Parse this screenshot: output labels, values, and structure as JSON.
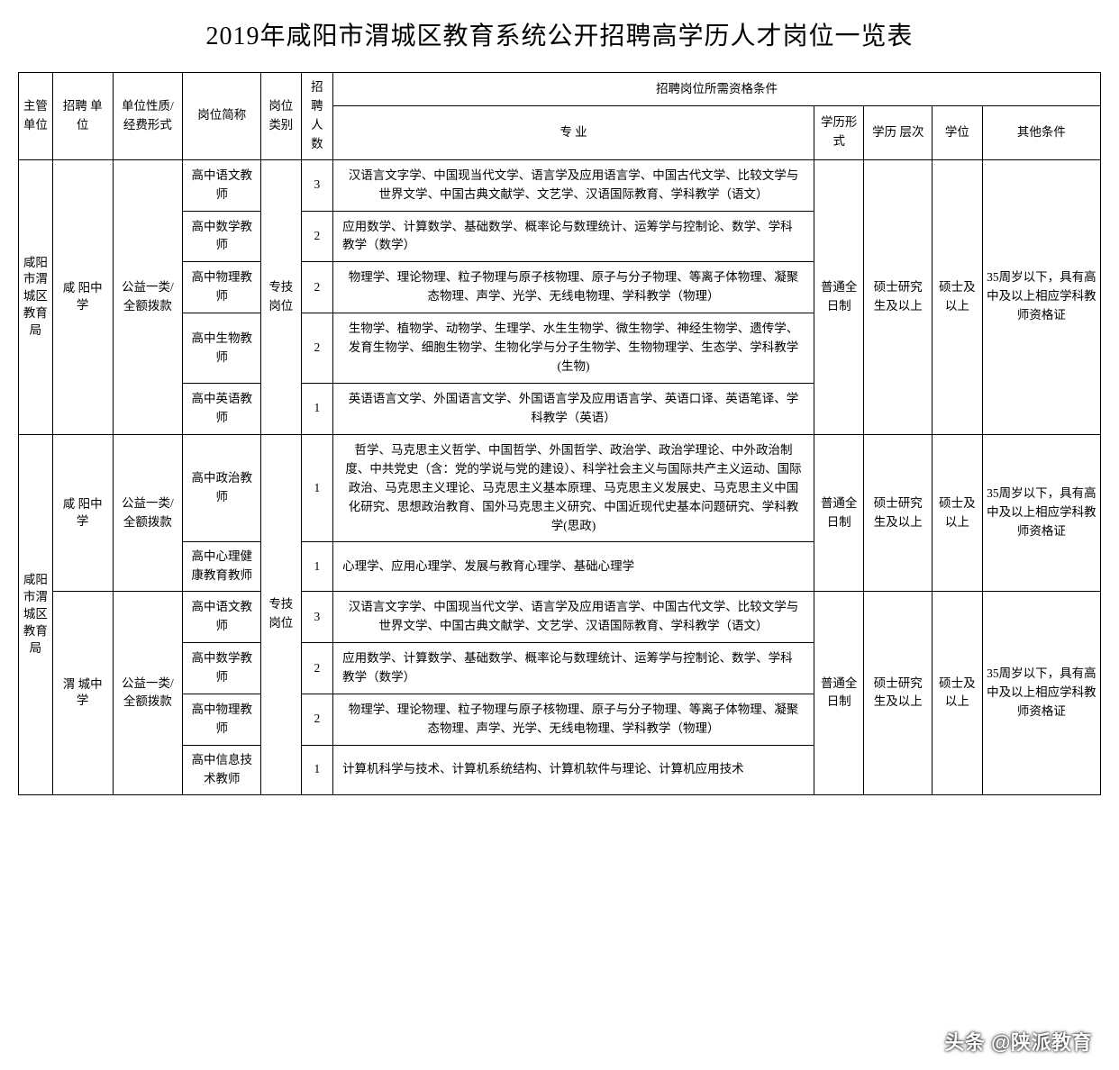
{
  "title": "2019年咸阳市渭城区教育系统公开招聘高学历人才岗位一览表",
  "header": {
    "dept": "主管单位",
    "employer": "招聘 单 位",
    "nature": "单位性质/经费形式",
    "position": "岗位简称",
    "category": "岗位类别",
    "count": "招聘人数",
    "qual_group": "招聘岗位所需资格条件",
    "major": "专  业",
    "edu_form": "学历形式",
    "edu_level": "学历 层次",
    "degree": "学位",
    "other": "其他条件"
  },
  "dept": "咸阳市渭城区教育局",
  "employer1": "咸 阳中 学",
  "employer2": "咸 阳中 学",
  "employer3": "渭 城中 学",
  "nature": "公益一类/全额拨款",
  "category": "专技岗位",
  "edu_form": "普通全日制",
  "edu_level": "硕士研究生及以上",
  "degree": "硕士及以上",
  "other": "35周岁以下，具有高中及以上相应学科教师资格证",
  "rows": [
    {
      "pos": "高中语文教师",
      "cnt": "3",
      "major": "汉语言文字学、中国现当代文学、语言学及应用语言学、中国古代文学、比较文学与世界文学、中国古典文献学、文艺学、汉语国际教育、学科教学（语文）"
    },
    {
      "pos": "高中数学教师",
      "cnt": "2",
      "major": "应用数学、计算数学、基础数学、概率论与数理统计、运筹学与控制论、数学、学科教学（数学）"
    },
    {
      "pos": "高中物理教师",
      "cnt": "2",
      "major": "物理学、理论物理、粒子物理与原子核物理、原子与分子物理、等离子体物理、凝聚态物理、声学、光学、无线电物理、学科教学（物理）"
    },
    {
      "pos": "高中生物教师",
      "cnt": "2",
      "major": "生物学、植物学、动物学、生理学、水生生物学、微生物学、神经生物学、遗传学、发育生物学、细胞生物学、生物化学与分子生物学、生物物理学、生态学、学科教学(生物)"
    },
    {
      "pos": "高中英语教师",
      "cnt": "1",
      "major": "英语语言文学、外国语言文学、外国语言学及应用语言学、英语口译、英语笔译、学科教学（英语）"
    },
    {
      "pos": "高中政治教师",
      "cnt": "1",
      "major": "哲学、马克思主义哲学、中国哲学、外国哲学、政治学、政治学理论、中外政治制度、中共党史（含：党的学说与党的建设）、科学社会主义与国际共产主义运动、国际政治、马克思主义理论、马克思主义基本原理、马克思主义发展史、马克思主义中国化研究、思想政治教育、国外马克思主义研究、中国近现代史基本问题研究、学科教学(思政)"
    },
    {
      "pos": "高中心理健康教育教师",
      "cnt": "1",
      "major": "心理学、应用心理学、发展与教育心理学、基础心理学"
    },
    {
      "pos": "高中语文教师",
      "cnt": "3",
      "major": "汉语言文字学、中国现当代文学、语言学及应用语言学、中国古代文学、比较文学与世界文学、中国古典文献学、文艺学、汉语国际教育、学科教学（语文）"
    },
    {
      "pos": "高中数学教师",
      "cnt": "2",
      "major": "应用数学、计算数学、基础数学、概率论与数理统计、运筹学与控制论、数学、学科教学（数学）"
    },
    {
      "pos": "高中物理教师",
      "cnt": "2",
      "major": "物理学、理论物理、粒子物理与原子核物理、原子与分子物理、等离子体物理、凝聚态物理、声学、光学、无线电物理、学科教学（物理）"
    },
    {
      "pos": "高中信息技术教师",
      "cnt": "1",
      "major": "计算机科学与技术、计算机系统结构、计算机软件与理论、计算机应用技术"
    }
  ],
  "watermark": "头条 @陕派教育"
}
